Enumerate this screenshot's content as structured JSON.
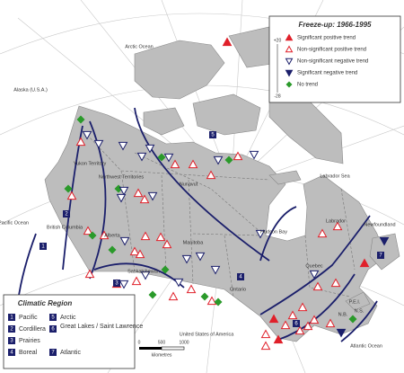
{
  "map": {
    "trend_legend": {
      "title": "Freeze-up: 1966-1995",
      "scale_top": "+20",
      "scale_bottom": "-28",
      "items": [
        "Significant positive trend",
        "Non-significant positive trend",
        "Non-significant negative trend",
        "Significant negative trend",
        "No trend"
      ]
    },
    "region_legend": {
      "title": "Climatic Region",
      "items": [
        {
          "number": "1",
          "name": "Pacific"
        },
        {
          "number": "2",
          "name": "Cordillera"
        },
        {
          "number": "3",
          "name": "Prairies"
        },
        {
          "number": "4",
          "name": "Boreal"
        },
        {
          "number": "5",
          "name": "Arctic"
        },
        {
          "number": "6",
          "name": "Great Lakes / Saint Lawrence"
        },
        {
          "number": "7",
          "name": "Atlantic"
        }
      ]
    },
    "labels": {
      "arctic_ocean": "Arctic Ocean",
      "alaska": "Alaska (U.S.A.)",
      "yukon": "Yukon Territory",
      "nwt": "Northwest Territories",
      "nunavut": "Nunavut",
      "bc": "British Columbia",
      "alberta": "Alberta",
      "saskatchewan": "Saskatchewan",
      "manitoba": "Manitoba",
      "ontario": "Ontario",
      "quebec": "Quebec",
      "labrador": "Labrador",
      "newfoundland": "Newfoundland",
      "pei": "P.E.I.",
      "ns": "N.S.",
      "nb": "N.B.",
      "hudson_bay": "Hudson Bay",
      "labrador_sea": "Labrador Sea",
      "pacific_ocean": "Pacific Ocean",
      "atlantic_ocean": "Atlantic Ocean",
      "usa": "United States of America"
    },
    "scale_bar": {
      "ticks": [
        "0",
        "500",
        "1000"
      ],
      "unit": "kilometres"
    }
  }
}
